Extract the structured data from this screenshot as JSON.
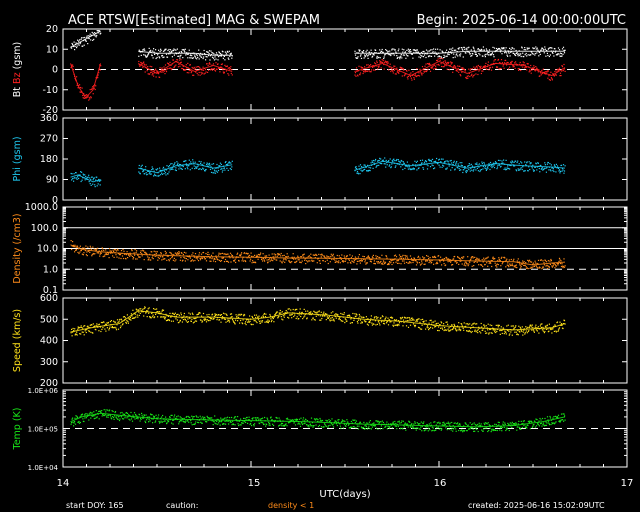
{
  "header": {
    "title": "ACE RTSW[Estimated] MAG & SWEPAM",
    "begin": "Begin: 2025-06-14 00:00:00UTC"
  },
  "footer": {
    "start_doy": "start DOY: 165",
    "caution": "caution:",
    "density_note": "density < 1",
    "created": "created: 2025-06-16 15:02:09UTC"
  },
  "colors": {
    "background": "#000000",
    "bt": "#ffffff",
    "bz": "#ff2020",
    "phi": "#1fc8f0",
    "density": "#ff8c1a",
    "speed": "#ffe21a",
    "temp": "#18e818",
    "caution": "#ff8c1a"
  },
  "chart_data": {
    "type": "scatter",
    "xlabel": "UTC(days)",
    "x_ticks": [
      "14",
      "15",
      "16",
      "17"
    ],
    "xlim": [
      14,
      17
    ],
    "panels": [
      {
        "key": "mag",
        "ylabel_parts": [
          "Bt",
          "Bz",
          "(gsm)"
        ],
        "ylim": [
          -20,
          20
        ],
        "yticks": [
          "20",
          "10",
          "0",
          "-10",
          "-20"
        ],
        "yticks_values": [
          20,
          10,
          0,
          -10,
          -20
        ],
        "dashed": [
          0
        ],
        "series": [
          {
            "name": "Bt",
            "segments": [
              {
                "x": [
                  14.04,
                  14.08,
                  14.12,
                  14.16,
                  14.2
                ],
                "y": [
                  11,
                  13,
                  15,
                  17,
                  19
                ]
              },
              {
                "x": [
                  14.4,
                  14.5,
                  14.6,
                  14.7,
                  14.8,
                  14.9
                ],
                "y": [
                  9,
                  8,
                  8,
                  8,
                  7,
                  7
                ]
              },
              {
                "x": [
                  15.55,
                  15.7,
                  15.85,
                  16.0,
                  16.15,
                  16.3,
                  16.45,
                  16.6,
                  16.67
                ],
                "y": [
                  8,
                  8,
                  8,
                  8,
                  9,
                  9,
                  9,
                  9,
                  9
                ]
              }
            ]
          },
          {
            "name": "Bz",
            "segments": [
              {
                "x": [
                  14.04,
                  14.08,
                  14.12,
                  14.16,
                  14.2
                ],
                "y": [
                  3,
                  -8,
                  -14,
                  -10,
                  3
                ]
              },
              {
                "x": [
                  14.4,
                  14.5,
                  14.6,
                  14.7,
                  14.8,
                  14.9
                ],
                "y": [
                  3,
                  -2,
                  4,
                  -1,
                  2,
                  -1
                ]
              },
              {
                "x": [
                  15.55,
                  15.7,
                  15.85,
                  16.0,
                  16.15,
                  16.3,
                  16.45,
                  16.6,
                  16.67
                ],
                "y": [
                  -1,
                  3,
                  -3,
                  4,
                  -2,
                  3,
                  2,
                  -3,
                  1
                ]
              }
            ]
          }
        ]
      },
      {
        "key": "phi",
        "ylabel": "Phi (gsm)",
        "ylim": [
          0,
          360
        ],
        "yticks": [
          "360",
          "270",
          "180",
          "90",
          "0"
        ],
        "yticks_values": [
          360,
          270,
          180,
          90,
          0
        ],
        "dashed": [],
        "series": [
          {
            "name": "Phi",
            "segments": [
              {
                "x": [
                  14.04,
                  14.08,
                  14.12,
                  14.16,
                  14.2
                ],
                "y": [
                  100,
                  110,
                  95,
                  80,
                  90
                ]
              },
              {
                "x": [
                  14.4,
                  14.5,
                  14.6,
                  14.7,
                  14.8,
                  14.9
                ],
                "y": [
                  140,
                  120,
                  150,
                  160,
                  140,
                  155
                ]
              },
              {
                "x": [
                  15.55,
                  15.7,
                  15.85,
                  16.0,
                  16.15,
                  16.3,
                  16.45,
                  16.6,
                  16.67
                ],
                "y": [
                  130,
                  170,
                  150,
                  165,
                  140,
                  160,
                  150,
                  145,
                  140
                ]
              }
            ]
          }
        ]
      },
      {
        "key": "density",
        "ylabel": "Density (/cm3)",
        "log": true,
        "ylim": [
          0.1,
          1000
        ],
        "yticks": [
          "1000.0",
          "100.0",
          "10.0",
          "1.0",
          "0.1"
        ],
        "yticks_values": [
          1000,
          100,
          10,
          1,
          0.1
        ],
        "dashed": [
          1
        ],
        "solid": [
          10,
          100
        ],
        "series": [
          {
            "name": "Density",
            "segments": [
              {
                "x": [
                  14.04,
                  14.1,
                  14.2,
                  14.3,
                  14.45,
                  14.6,
                  14.8,
                  15.0,
                  15.2,
                  15.4,
                  15.6,
                  15.8,
                  16.0,
                  16.2,
                  16.4,
                  16.5,
                  16.6,
                  16.67
                ],
                "y": [
                  15,
                  9,
                  7,
                  6,
                  5,
                  4.5,
                  4,
                  3.8,
                  3.5,
                  3.4,
                  3.2,
                  3.0,
                  2.8,
                  2.5,
                  2.3,
                  1.6,
                  2.0,
                  2.2
                ]
              }
            ]
          }
        ]
      },
      {
        "key": "speed",
        "ylabel": "Speed (km/s)",
        "ylim": [
          200,
          600
        ],
        "yticks": [
          "600",
          "500",
          "400",
          "300",
          "200"
        ],
        "yticks_values": [
          600,
          500,
          400,
          300,
          200
        ],
        "dashed": [],
        "series": [
          {
            "name": "Speed",
            "segments": [
              {
                "x": [
                  14.04,
                  14.15,
                  14.3,
                  14.4,
                  14.5,
                  14.6,
                  14.8,
                  15.0,
                  15.1,
                  15.2,
                  15.4,
                  15.6,
                  15.8,
                  16.0,
                  16.2,
                  16.4,
                  16.6,
                  16.67
                ],
                "y": [
                  440,
                  460,
                  480,
                  540,
                  530,
                  510,
                  510,
                  500,
                  510,
                  530,
                  520,
                  500,
                  490,
                  470,
                  460,
                  450,
                  460,
                  480
                ]
              }
            ]
          }
        ]
      },
      {
        "key": "temp",
        "ylabel": "Temp (K)",
        "log": true,
        "ylim": [
          10000,
          1000000
        ],
        "yticks": [
          "1.0E+06",
          "1.0E+05",
          "1.0E+04"
        ],
        "yticks_values": [
          1000000,
          100000,
          10000
        ],
        "dashed": [
          100000
        ],
        "series": [
          {
            "name": "Temp",
            "segments": [
              {
                "x": [
                  14.04,
                  14.1,
                  14.2,
                  14.3,
                  14.5,
                  14.7,
                  15.0,
                  15.3,
                  15.6,
                  15.9,
                  16.2,
                  16.4,
                  16.55,
                  16.67
                ],
                "y": [
                  150000,
                  200000,
                  250000,
                  220000,
                  180000,
                  170000,
                  160000,
                  150000,
                  130000,
                  120000,
                  110000,
                  120000,
                  150000,
                  200000
                ]
              }
            ]
          }
        ]
      }
    ]
  }
}
